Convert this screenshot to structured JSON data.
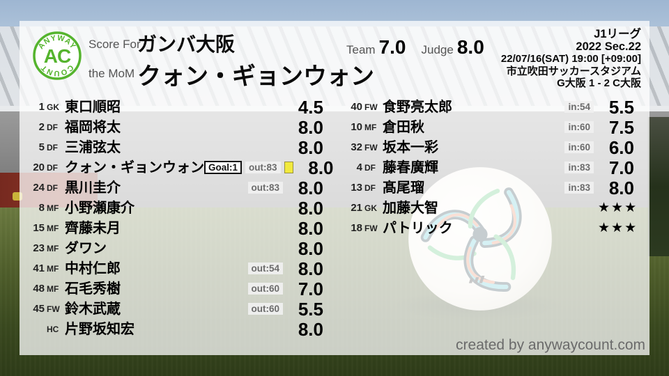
{
  "logo": {
    "arc_top": "ANYWAY",
    "initials": "AC",
    "arc_bottom": "COUNT"
  },
  "header": {
    "score_for_label": "Score For",
    "mom_label": "the MoM",
    "team_name": "ガンバ大阪",
    "mom_name": "クォン・ギョンウォン",
    "team_label": "Team",
    "team_score": "7.0",
    "judge_label": "Judge",
    "judge_score": "8.0"
  },
  "match_info": {
    "league": "J1リーグ",
    "season": "2022 Sec.22",
    "kickoff": "22/07/16(SAT) 19:00 [+09:00]",
    "venue": "市立吹田サッカースタジアム",
    "score_line": "G大阪 1 - 2 C大阪"
  },
  "squad": {
    "starters": [
      {
        "number": "1",
        "position": "GK",
        "name": "東口順昭",
        "rating": "4.5",
        "badges": []
      },
      {
        "number": "2",
        "position": "DF",
        "name": "福岡将太",
        "rating": "8.0",
        "badges": []
      },
      {
        "number": "5",
        "position": "DF",
        "name": "三浦弦太",
        "rating": "8.0",
        "badges": []
      },
      {
        "number": "20",
        "position": "DF",
        "name": "クォン・ギョンウォン",
        "rating": "8.0",
        "badges": [
          {
            "kind": "goal",
            "label": "Goal:1"
          },
          {
            "kind": "sub",
            "label": "out:83"
          },
          {
            "kind": "yellow"
          }
        ]
      },
      {
        "number": "24",
        "position": "DF",
        "name": "黒川圭介",
        "rating": "8.0",
        "badges": [
          {
            "kind": "sub",
            "label": "out:83"
          }
        ]
      },
      {
        "number": "8",
        "position": "MF",
        "name": "小野瀬康介",
        "rating": "8.0",
        "badges": []
      },
      {
        "number": "15",
        "position": "MF",
        "name": "齊藤未月",
        "rating": "8.0",
        "badges": []
      },
      {
        "number": "23",
        "position": "MF",
        "name": "ダワン",
        "rating": "8.0",
        "badges": []
      },
      {
        "number": "41",
        "position": "MF",
        "name": "中村仁郎",
        "rating": "8.0",
        "badges": [
          {
            "kind": "sub",
            "label": "out:54"
          }
        ]
      },
      {
        "number": "48",
        "position": "MF",
        "name": "石毛秀樹",
        "rating": "7.0",
        "badges": [
          {
            "kind": "sub",
            "label": "out:60"
          }
        ]
      },
      {
        "number": "45",
        "position": "FW",
        "name": "鈴木武蔵",
        "rating": "5.5",
        "badges": [
          {
            "kind": "sub",
            "label": "out:60"
          }
        ]
      },
      {
        "number": "",
        "position": "HC",
        "name": "片野坂知宏",
        "rating": "8.0",
        "badges": []
      }
    ],
    "subs": [
      {
        "number": "40",
        "position": "FW",
        "name": "食野亮太郎",
        "rating": "5.5",
        "badges": [
          {
            "kind": "sub",
            "label": "in:54"
          }
        ]
      },
      {
        "number": "10",
        "position": "MF",
        "name": "倉田秋",
        "rating": "7.5",
        "badges": [
          {
            "kind": "sub",
            "label": "in:60"
          }
        ]
      },
      {
        "number": "32",
        "position": "FW",
        "name": "坂本一彩",
        "rating": "6.0",
        "badges": [
          {
            "kind": "sub",
            "label": "in:60"
          }
        ]
      },
      {
        "number": "4",
        "position": "DF",
        "name": "藤春廣輝",
        "rating": "7.0",
        "badges": [
          {
            "kind": "sub",
            "label": "in:83"
          }
        ]
      },
      {
        "number": "13",
        "position": "DF",
        "name": "髙尾瑠",
        "rating": "8.0",
        "badges": [
          {
            "kind": "sub",
            "label": "in:83"
          }
        ]
      },
      {
        "number": "21",
        "position": "GK",
        "name": "加藤大智",
        "rating": "★★★",
        "badges": []
      },
      {
        "number": "18",
        "position": "FW",
        "name": "パトリック",
        "rating": "★★★",
        "badges": []
      }
    ]
  },
  "footer": {
    "credit": "created by anywaycount.com"
  },
  "colors": {
    "logo_green": "#55b42e",
    "yellow_card": "#f1e93d",
    "panel_overlay": "rgba(255,255,255,0.75)",
    "rating_text": "#000000",
    "label_gray": "#555555",
    "badge_text": "#6b6b6b",
    "credit_gray": "#6a6a6a"
  }
}
